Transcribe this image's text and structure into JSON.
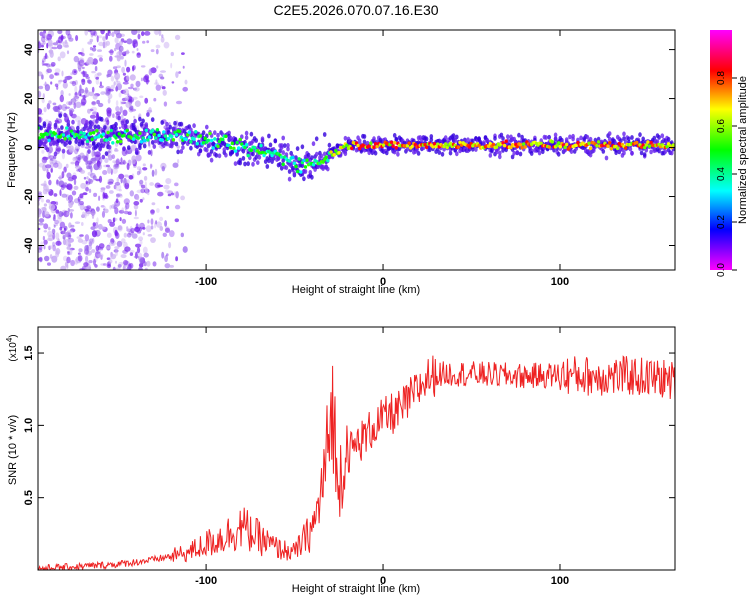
{
  "figure": {
    "title": "C2E5.2026.070.07.16.E30"
  },
  "chart_data": [
    {
      "type": "heatmap",
      "title": "C2E5.2026.070.07.16.E30",
      "xlabel": "Height of straight line (km)",
      "ylabel": "Frequency (Hz)",
      "xlim": [
        -195,
        165
      ],
      "ylim": [
        -50,
        48
      ],
      "x_ticks": [
        -100,
        0,
        100
      ],
      "x_tick_labels": [
        "-100",
        "0",
        "100"
      ],
      "y_ticks": [
        -40,
        -20,
        0,
        20,
        40
      ],
      "y_tick_labels": [
        "-40",
        "-20",
        "0",
        "20",
        "40"
      ],
      "grid": false,
      "colorbar": {
        "label": "Normalized spectral amplitude",
        "range": [
          0,
          1
        ],
        "ticks": [
          0.0,
          0.2,
          0.4,
          0.6,
          0.8
        ],
        "tick_labels": [
          "0.0",
          "0.2",
          "0.4",
          "0.6",
          "0.8"
        ],
        "colormap": [
          "#ff00ff",
          "#0000ff",
          "#00ffff",
          "#00ff00",
          "#ffff00",
          "#ff0000",
          "#ff00ff"
        ]
      },
      "ridge": {
        "description_points_x": [
          -195,
          -150,
          -120,
          -100,
          -80,
          -60,
          -45,
          -35,
          -20,
          0,
          40,
          100,
          165
        ],
        "description_points_y": [
          5,
          5,
          5,
          3,
          0,
          -3,
          -7,
          -5,
          1,
          1,
          1,
          1,
          1
        ]
      }
    },
    {
      "type": "line",
      "xlabel": "Height of straight line (km)",
      "ylabel": "SNR (10 * v/v)",
      "y_multiplier_label": "(x10",
      "y_multiplier_exp": "4",
      "y_multiplier_close": ")",
      "xlim": [
        -195,
        165
      ],
      "ylim": [
        0,
        16800
      ],
      "x_ticks": [
        -100,
        0,
        100
      ],
      "x_tick_labels": [
        "-100",
        "0",
        "100"
      ],
      "y_ticks": [
        5000,
        10000,
        15000
      ],
      "y_tick_labels": [
        "0.5",
        "1.0",
        "1.5"
      ],
      "grid": false,
      "color": "#ee2222",
      "series": [
        {
          "x": [
            -195,
            -170,
            -150,
            -130,
            -110,
            -100,
            -90,
            -80,
            -70,
            -60,
            -50,
            -42,
            -38,
            -34,
            -30,
            -28,
            -26,
            -24,
            -22,
            -18,
            -14,
            -10,
            -5,
            0,
            5,
            10,
            15,
            20,
            25,
            30,
            40,
            60,
            80,
            100,
            120,
            140,
            160,
            165
          ],
          "values": [
            100,
            250,
            400,
            700,
            1200,
            1800,
            2300,
            3000,
            2200,
            1500,
            1200,
            2500,
            3500,
            6000,
            9500,
            12000,
            5000,
            7000,
            8200,
            8200,
            8800,
            9200,
            10000,
            10400,
            10800,
            11000,
            11800,
            12500,
            13300,
            13500,
            13600,
            13500,
            13400,
            13500,
            13400,
            13400,
            13200,
            13000
          ]
        }
      ]
    }
  ]
}
